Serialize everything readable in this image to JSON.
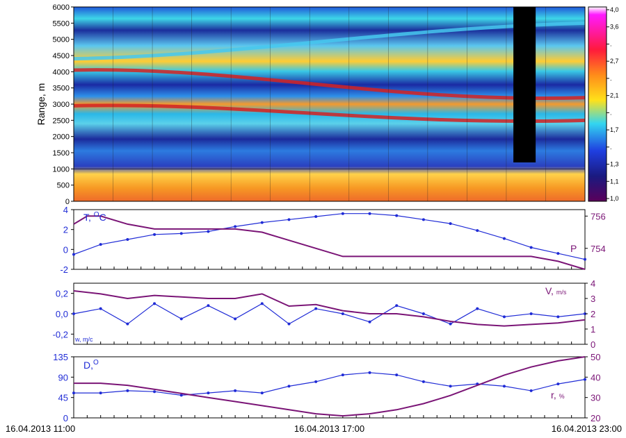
{
  "chart_data": [
    {
      "type": "heatmap",
      "title": "",
      "ylabel": "Range, m",
      "ylim": [
        0,
        6000
      ],
      "yticks": [
        "0",
        "500",
        "1000",
        "1500",
        "2000",
        "2500",
        "3000",
        "3500",
        "4000",
        "4500",
        "5000",
        "5500",
        "6000"
      ],
      "colorbar_ticks": [
        "4,0",
        "3,6",
        ".",
        "2,7",
        ".",
        "2,1",
        ".",
        "1,7",
        ".",
        "1,3",
        "1,1",
        "1,0"
      ],
      "colorbar_range": [
        1.0,
        4.0
      ],
      "layers_range_m": [
        {
          "name": "layer-upper",
          "start": 4400,
          "end": 5500
        },
        {
          "name": "layer-red-1",
          "start": 4050,
          "end": 3200
        },
        {
          "name": "layer-red-2",
          "start": 2950,
          "end": 2500
        },
        {
          "name": "boundary-layer-top",
          "value": 1000
        }
      ],
      "missing_data_block_range_m": [
        1200,
        6000
      ]
    },
    {
      "type": "line",
      "series": [
        {
          "name": "T, °C",
          "axis": "left",
          "ylim": [
            -2,
            4
          ],
          "yticks": [
            "4",
            "2",
            "0",
            "-2"
          ],
          "label_parts": [
            "T, ",
            "O",
            "C"
          ],
          "points": [
            [
              0,
              -0.5
            ],
            [
              1,
              0.5
            ],
            [
              2,
              1.0
            ],
            [
              3,
              1.5
            ],
            [
              4,
              1.6
            ],
            [
              5,
              1.8
            ],
            [
              6,
              2.3
            ],
            [
              7,
              2.7
            ],
            [
              8,
              3.0
            ],
            [
              9,
              3.3
            ],
            [
              10,
              3.6
            ],
            [
              11,
              3.6
            ],
            [
              12,
              3.4
            ],
            [
              13,
              3.0
            ],
            [
              14,
              2.6
            ],
            [
              15,
              1.9
            ],
            [
              16,
              1.1
            ],
            [
              17,
              0.2
            ],
            [
              18,
              -0.4
            ],
            [
              19,
              -1.0
            ]
          ]
        },
        {
          "name": "P",
          "axis": "right",
          "ylim": [
            752.7,
            756.4
          ],
          "yticks": [
            "756",
            "754"
          ],
          "label": "P",
          "points": [
            [
              0,
              755.5
            ],
            [
              0.5,
              756.0
            ],
            [
              1,
              756.0
            ],
            [
              2,
              755.5
            ],
            [
              3,
              755.2
            ],
            [
              4,
              755.2
            ],
            [
              5,
              755.2
            ],
            [
              6,
              755.2
            ],
            [
              7,
              755.0
            ],
            [
              8,
              754.5
            ],
            [
              9,
              754.0
            ],
            [
              10,
              753.5
            ],
            [
              11,
              753.5
            ],
            [
              12,
              753.5
            ],
            [
              13,
              753.5
            ],
            [
              14,
              753.5
            ],
            [
              15,
              753.5
            ],
            [
              16,
              753.5
            ],
            [
              17,
              753.5
            ],
            [
              18,
              753.2
            ],
            [
              19,
              752.7
            ]
          ]
        }
      ]
    },
    {
      "type": "line",
      "series": [
        {
          "name": "w, m/c",
          "axis": "left",
          "ylim": [
            -0.3,
            0.3
          ],
          "yticks": [
            "0,2",
            "0,0",
            "-0,2"
          ],
          "label": "w, m/c",
          "points": [
            [
              0,
              0.0
            ],
            [
              1,
              0.05
            ],
            [
              2,
              -0.1
            ],
            [
              3,
              0.1
            ],
            [
              4,
              -0.05
            ],
            [
              5,
              0.08
            ],
            [
              6,
              -0.05
            ],
            [
              7,
              0.1
            ],
            [
              8,
              -0.1
            ],
            [
              9,
              0.05
            ],
            [
              10,
              0.0
            ],
            [
              11,
              -0.08
            ],
            [
              12,
              0.08
            ],
            [
              13,
              0.0
            ],
            [
              14,
              -0.1
            ],
            [
              15,
              0.05
            ],
            [
              16,
              -0.03
            ],
            [
              17,
              0.0
            ],
            [
              18,
              -0.03
            ],
            [
              19,
              0.0
            ]
          ]
        },
        {
          "name": "V, m/s",
          "axis": "right",
          "ylim": [
            0,
            4
          ],
          "yticks": [
            "4",
            "3",
            "2",
            "1",
            "0"
          ],
          "label_parts": [
            "V, ",
            "m/s"
          ],
          "points": [
            [
              0,
              3.5
            ],
            [
              1,
              3.3
            ],
            [
              2,
              3.0
            ],
            [
              3,
              3.2
            ],
            [
              4,
              3.1
            ],
            [
              5,
              3.0
            ],
            [
              6,
              3.0
            ],
            [
              7,
              3.3
            ],
            [
              8,
              2.5
            ],
            [
              9,
              2.6
            ],
            [
              10,
              2.2
            ],
            [
              11,
              2.0
            ],
            [
              12,
              2.0
            ],
            [
              13,
              1.8
            ],
            [
              14,
              1.5
            ],
            [
              15,
              1.3
            ],
            [
              16,
              1.2
            ],
            [
              17,
              1.3
            ],
            [
              18,
              1.4
            ],
            [
              19,
              1.6
            ]
          ]
        }
      ]
    },
    {
      "type": "line",
      "series": [
        {
          "name": "D, °",
          "axis": "left",
          "ylim": [
            0,
            135
          ],
          "yticks": [
            "135",
            "90",
            "45",
            "0"
          ],
          "label_parts": [
            "D,",
            "O"
          ],
          "points": [
            [
              0,
              55
            ],
            [
              1,
              55
            ],
            [
              2,
              60
            ],
            [
              3,
              58
            ],
            [
              4,
              50
            ],
            [
              5,
              55
            ],
            [
              6,
              60
            ],
            [
              7,
              55
            ],
            [
              8,
              70
            ],
            [
              9,
              80
            ],
            [
              10,
              95
            ],
            [
              11,
              100
            ],
            [
              12,
              95
            ],
            [
              13,
              80
            ],
            [
              14,
              70
            ],
            [
              15,
              75
            ],
            [
              16,
              70
            ],
            [
              17,
              60
            ],
            [
              18,
              75
            ],
            [
              19,
              85
            ]
          ]
        },
        {
          "name": "r, %",
          "axis": "right",
          "ylim": [
            20,
            50
          ],
          "yticks": [
            "50",
            "40",
            "30",
            "20"
          ],
          "label_parts": [
            "r, ",
            "%"
          ],
          "points": [
            [
              0,
              37
            ],
            [
              1,
              37
            ],
            [
              2,
              36
            ],
            [
              3,
              34
            ],
            [
              4,
              32
            ],
            [
              5,
              30
            ],
            [
              6,
              28
            ],
            [
              7,
              26
            ],
            [
              8,
              24
            ],
            [
              9,
              22
            ],
            [
              10,
              21
            ],
            [
              11,
              22
            ],
            [
              12,
              24
            ],
            [
              13,
              27
            ],
            [
              14,
              31
            ],
            [
              15,
              36
            ],
            [
              16,
              41
            ],
            [
              17,
              45
            ],
            [
              18,
              48
            ],
            [
              19,
              50
            ]
          ]
        }
      ]
    }
  ],
  "x_axis": {
    "range": [
      0,
      19
    ],
    "tick_labels": [
      {
        "x": 0,
        "label": "16.04.2013 11:00"
      },
      {
        "x": 9.5,
        "label": "16.04.2013 17:00"
      },
      {
        "x": 19,
        "label": "16.04.2013 23:00"
      }
    ]
  },
  "colors": {
    "blue": "#1f2bd6",
    "purple": "#7a1476",
    "axis": "#000000"
  }
}
